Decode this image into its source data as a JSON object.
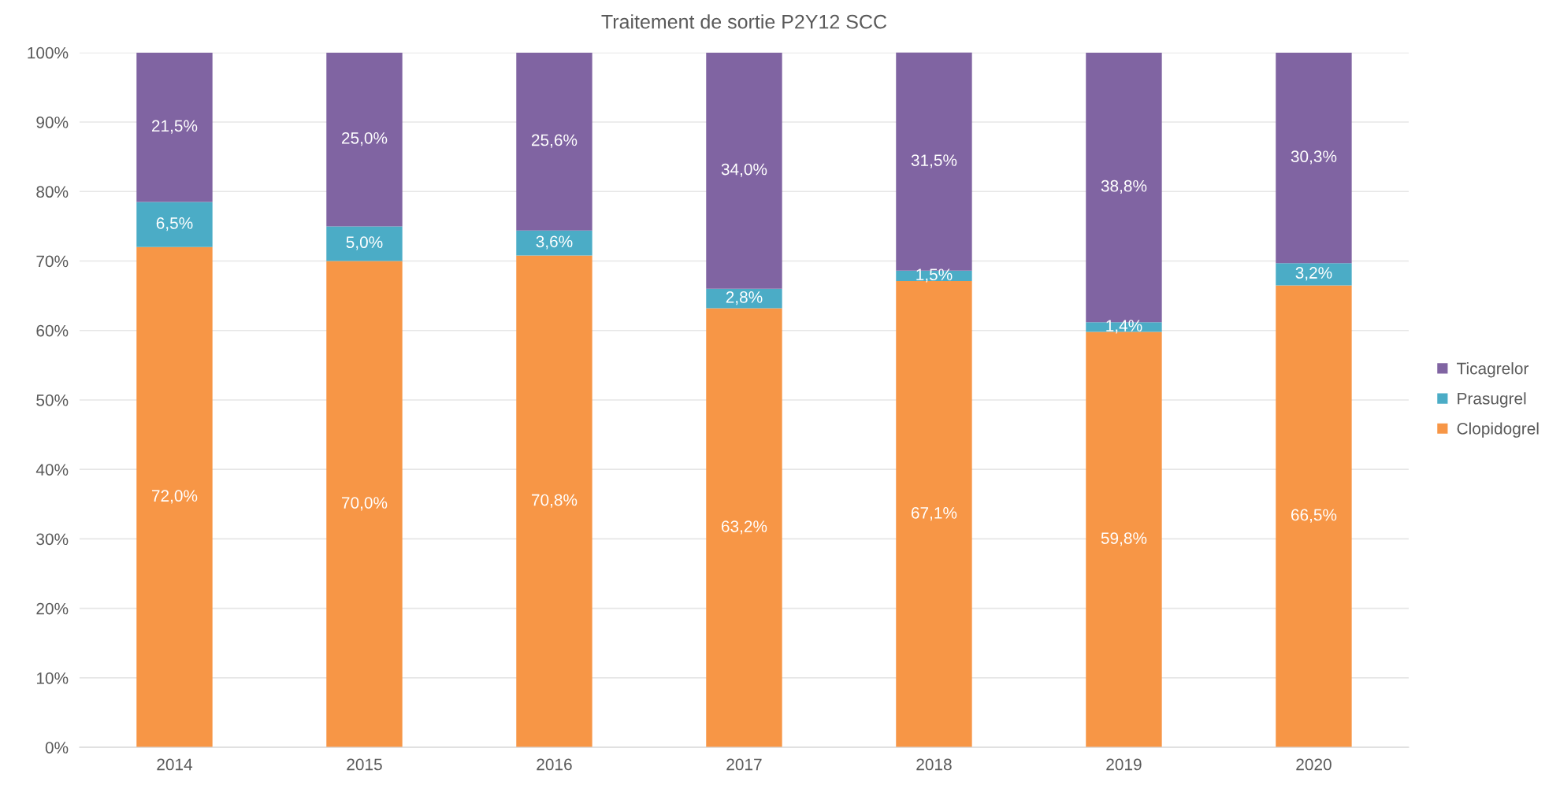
{
  "chart_data": {
    "type": "bar",
    "title": "Traitement de sortie P2Y12 SCC",
    "categories": [
      "2014",
      "2015",
      "2016",
      "2017",
      "2018",
      "2019",
      "2020"
    ],
    "stacked": true,
    "series": [
      {
        "name": "Clopidogrel",
        "color": "#f79646",
        "values": [
          72.0,
          70.0,
          70.8,
          63.2,
          67.1,
          59.8,
          66.5
        ],
        "value_labels": [
          "72,0%",
          "70,0%",
          "70,8%",
          "63,2%",
          "67,1%",
          "59,8%",
          "66,5%"
        ]
      },
      {
        "name": "Prasugrel",
        "color": "#4bacc6",
        "values": [
          6.5,
          5.0,
          3.6,
          2.8,
          1.5,
          1.4,
          3.2
        ],
        "value_labels": [
          "6,5%",
          "5,0%",
          "3,6%",
          "2,8%",
          "1,5%",
          "1,4%",
          "3,2%"
        ]
      },
      {
        "name": "Ticagrelor",
        "color": "#8064a2",
        "values": [
          21.5,
          25.0,
          25.6,
          34.0,
          31.5,
          38.8,
          30.3
        ],
        "value_labels": [
          "21,5%",
          "25,0%",
          "25,6%",
          "34,0%",
          "31,5%",
          "38,8%",
          "30,3%"
        ]
      }
    ],
    "ylim": [
      0,
      100
    ],
    "yticks": [
      {
        "value": 0,
        "label": "0%"
      },
      {
        "value": 10,
        "label": "10%"
      },
      {
        "value": 20,
        "label": "20%"
      },
      {
        "value": 30,
        "label": "30%"
      },
      {
        "value": 40,
        "label": "40%"
      },
      {
        "value": 50,
        "label": "50%"
      },
      {
        "value": 60,
        "label": "60%"
      },
      {
        "value": 70,
        "label": "70%"
      },
      {
        "value": 80,
        "label": "80%"
      },
      {
        "value": 90,
        "label": "90%"
      },
      {
        "value": 100,
        "label": "100%"
      }
    ],
    "grid": "y",
    "legend": "right"
  }
}
